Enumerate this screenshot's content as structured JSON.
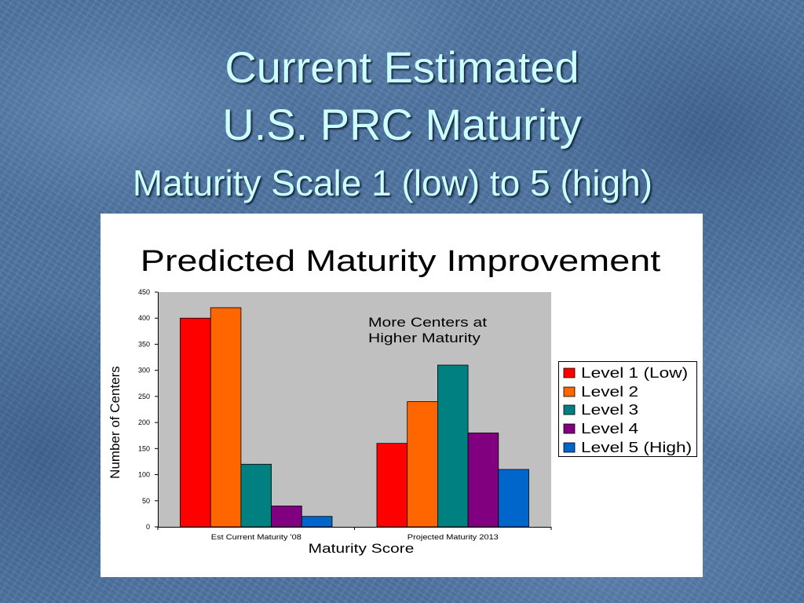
{
  "slide": {
    "title_line1": "Current Estimated",
    "title_line2": "U.S. PRC Maturity",
    "subtitle": "Maturity Scale 1 (low) to 5 (high)",
    "colors": {
      "background": "#4f76a3",
      "title_text": "#ccffff",
      "chart_panel": "#ffffff"
    }
  },
  "chart_data": {
    "type": "bar",
    "title": "Predicted Maturity Improvement",
    "xlabel": "Maturity Score",
    "ylabel": "Number of Centers",
    "categories": [
      "Est Current Maturity '08",
      "Projected Maturity 2013"
    ],
    "ylim": [
      0,
      450
    ],
    "yticks": [
      0,
      50,
      100,
      150,
      200,
      250,
      300,
      350,
      400,
      450
    ],
    "series": [
      {
        "name": "Level 1 (Low)",
        "color": "#ff0000",
        "values": [
          400,
          160
        ]
      },
      {
        "name": "Level 2",
        "color": "#ff6600",
        "values": [
          420,
          240
        ]
      },
      {
        "name": "Level 3",
        "color": "#008080",
        "values": [
          120,
          310
        ]
      },
      {
        "name": "Level 4",
        "color": "#800080",
        "values": [
          40,
          180
        ]
      },
      {
        "name": "Level 5 (High)",
        "color": "#0066cc",
        "values": [
          20,
          110
        ]
      }
    ],
    "annotation": [
      "More Centers at",
      "Higher Maturity"
    ],
    "legend_position": "right",
    "grid": false,
    "plot_background": "#c0c0c0"
  }
}
